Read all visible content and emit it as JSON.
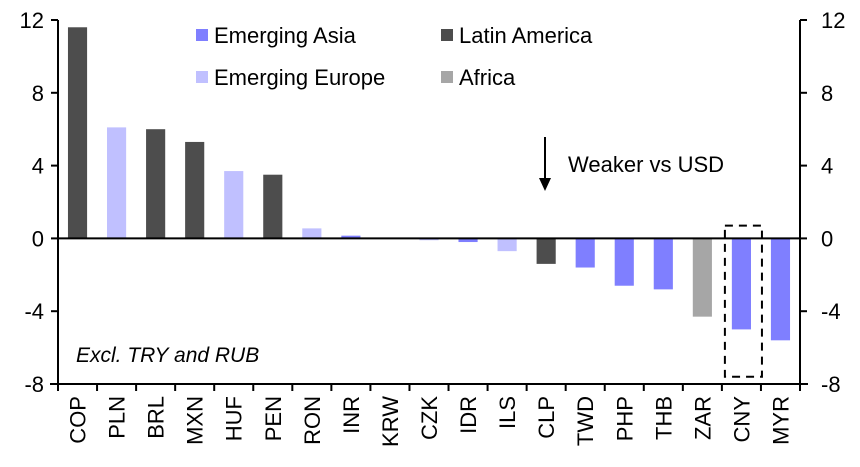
{
  "chart_data": {
    "type": "bar",
    "title": "",
    "xlabel": "",
    "ylabel": "",
    "ylim": [
      -8,
      12
    ],
    "yticks": [
      12,
      8,
      4,
      0,
      -4,
      -8
    ],
    "y2ticks": [
      12,
      8,
      4,
      0,
      -4,
      -8
    ],
    "grid": false,
    "legend_position": "top-center",
    "groups": [
      {
        "name": "Emerging Asia",
        "color": "#7f7fff"
      },
      {
        "name": "Latin America",
        "color": "#4d4d4d"
      },
      {
        "name": "Emerging Europe",
        "color": "#c0c0ff"
      },
      {
        "name": "Africa",
        "color": "#a6a6a6"
      }
    ],
    "categories": [
      "COP",
      "PLN",
      "BRL",
      "MXN",
      "HUF",
      "PEN",
      "RON",
      "INR",
      "KRW",
      "CZK",
      "IDR",
      "ILS",
      "CLP",
      "TWD",
      "PHP",
      "THB",
      "ZAR",
      "CNY",
      "MYR"
    ],
    "values": [
      11.6,
      6.1,
      6.0,
      5.3,
      3.7,
      3.5,
      0.55,
      0.15,
      0.0,
      -0.1,
      -0.2,
      -0.7,
      -1.4,
      -1.6,
      -2.6,
      -2.8,
      -4.3,
      -5.0,
      -5.6
    ],
    "group_of": [
      "Latin America",
      "Emerging Europe",
      "Latin America",
      "Latin America",
      "Emerging Europe",
      "Latin America",
      "Emerging Europe",
      "Emerging Asia",
      "Emerging Asia",
      "Emerging Europe",
      "Emerging Asia",
      "Emerging Europe",
      "Latin America",
      "Emerging Asia",
      "Emerging Asia",
      "Emerging Asia",
      "Africa",
      "Emerging Asia",
      "Emerging Asia"
    ],
    "annotations": {
      "arrow_text": "Weaker vs USD",
      "note": "Excl. TRY and RUB",
      "highlighted_category": "CNY"
    }
  }
}
